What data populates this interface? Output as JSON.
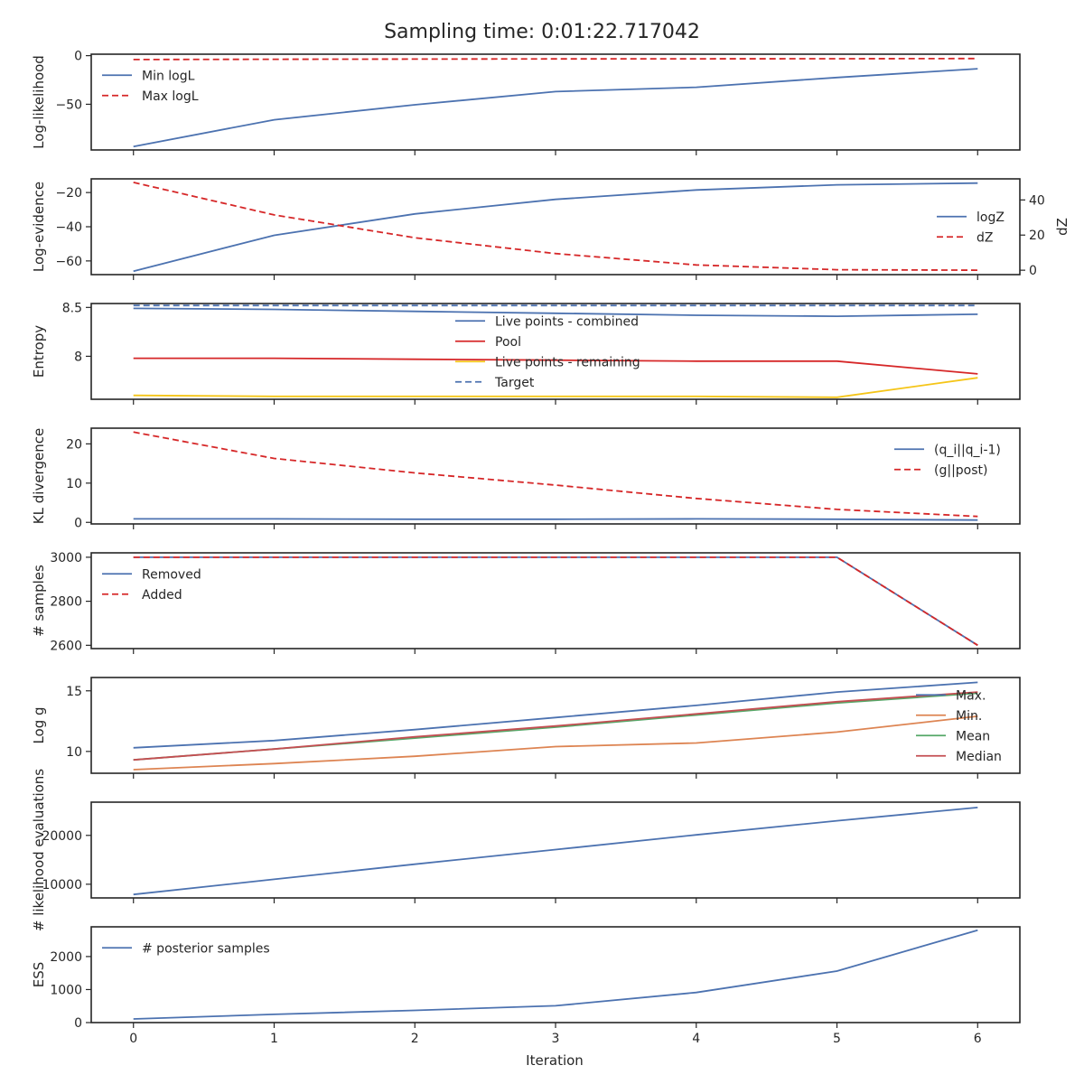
{
  "figure_title": "Sampling time: 0:01:22.717042",
  "colors": {
    "blue": "#4c72b0",
    "red": "#d62728",
    "yellow": "#f5c518",
    "green": "#55a868",
    "orange": "#dd8452",
    "darkred": "#c44e52"
  },
  "chart_data": [
    {
      "type": "line",
      "ylabel": "Log-likelihood",
      "x": [
        0,
        1,
        2,
        3,
        4,
        5,
        6
      ],
      "ylim": [
        -97,
        1.5
      ],
      "yticks": [
        0,
        -50
      ],
      "legend": "upper-left",
      "series": [
        {
          "name": "Min logL",
          "color": "blue",
          "dash": false,
          "values": [
            -93.5,
            -66,
            -50.5,
            -37,
            -32.5,
            -22.5,
            -13.5
          ]
        },
        {
          "name": "Max logL",
          "color": "red",
          "dash": true,
          "values": [
            -4,
            -3.7,
            -3.5,
            -3.3,
            -3.2,
            -3.1,
            -3.0
          ]
        }
      ]
    },
    {
      "type": "line",
      "ylabel": "Log-evidence",
      "y2label": "dZ",
      "x": [
        0,
        1,
        2,
        3,
        4,
        5,
        6
      ],
      "ylim": [
        -68,
        -12
      ],
      "yticks": [
        -20,
        -40,
        -60
      ],
      "y2lim": [
        -2.5,
        52
      ],
      "y2ticks": [
        40,
        20,
        0
      ],
      "legend": "right",
      "series": [
        {
          "name": "logZ",
          "color": "blue",
          "dash": false,
          "axis": "left",
          "values": [
            -66,
            -45,
            -32.5,
            -24,
            -18.5,
            -15.5,
            -14.5
          ]
        },
        {
          "name": "dZ",
          "color": "red",
          "dash": true,
          "axis": "right",
          "values": [
            50,
            31.5,
            18.5,
            9.5,
            3,
            0.3,
            0
          ]
        }
      ]
    },
    {
      "type": "line",
      "ylabel": "Entropy",
      "x": [
        0,
        1,
        2,
        3,
        4,
        5,
        6
      ],
      "ylim": [
        7.56,
        8.54
      ],
      "yticks": [
        8.5,
        8.0
      ],
      "legend": "center",
      "series": [
        {
          "name": "Live points - combined",
          "color": "blue",
          "dash": false,
          "values": [
            8.49,
            8.48,
            8.46,
            8.44,
            8.42,
            8.41,
            8.43
          ]
        },
        {
          "name": "Pool",
          "color": "red",
          "dash": false,
          "values": [
            7.98,
            7.98,
            7.97,
            7.96,
            7.95,
            7.95,
            7.82
          ]
        },
        {
          "name": "Live points - remaining",
          "color": "yellow",
          "dash": false,
          "values": [
            7.6,
            7.59,
            7.59,
            7.59,
            7.59,
            7.58,
            7.78
          ]
        },
        {
          "name": "Target",
          "color": "blue",
          "dash": true,
          "values": [
            8.52,
            8.52,
            8.52,
            8.52,
            8.52,
            8.52,
            8.52
          ]
        }
      ]
    },
    {
      "type": "line",
      "ylabel": "KL divergence",
      "x": [
        0,
        1,
        2,
        3,
        4,
        5,
        6
      ],
      "ylim": [
        -0.4,
        24
      ],
      "yticks": [
        20,
        10,
        0
      ],
      "legend": "upper-right",
      "series": [
        {
          "name": "(q_i||q_i-1)",
          "color": "blue",
          "dash": false,
          "values": [
            0.9,
            0.9,
            0.8,
            0.8,
            0.9,
            0.8,
            0.6
          ]
        },
        {
          "name": "(g||post)",
          "color": "red",
          "dash": true,
          "values": [
            23,
            16.3,
            12.6,
            9.5,
            6.1,
            3.3,
            1.5
          ]
        }
      ]
    },
    {
      "type": "line",
      "ylabel": "# samples",
      "x": [
        0,
        1,
        2,
        3,
        4,
        5,
        6
      ],
      "ylim": [
        2585,
        3020
      ],
      "yticks": [
        3000,
        2800,
        2600
      ],
      "legend": "upper-left",
      "series": [
        {
          "name": "Removed",
          "color": "blue",
          "dash": false,
          "values": [
            3000,
            3000,
            3000,
            3000,
            3000,
            3000,
            2600
          ]
        },
        {
          "name": "Added",
          "color": "red",
          "dash": true,
          "values": [
            3000,
            3000,
            3000,
            3000,
            3000,
            3000,
            2600
          ]
        }
      ]
    },
    {
      "type": "line",
      "ylabel": "Log g",
      "x": [
        0,
        1,
        2,
        3,
        4,
        5,
        6
      ],
      "ylim": [
        8.2,
        16.1
      ],
      "yticks": [
        15,
        10
      ],
      "legend": "lower-right",
      "series": [
        {
          "name": "Max.",
          "color": "blue",
          "dash": false,
          "values": [
            10.3,
            10.9,
            11.8,
            12.8,
            13.8,
            14.9,
            15.7
          ]
        },
        {
          "name": "Min.",
          "color": "orange",
          "dash": false,
          "values": [
            8.5,
            9.0,
            9.6,
            10.4,
            10.7,
            11.6,
            12.9
          ]
        },
        {
          "name": "Mean",
          "color": "green",
          "dash": false,
          "values": [
            9.3,
            10.2,
            11.1,
            12.0,
            13.0,
            14.0,
            14.8
          ]
        },
        {
          "name": "Median",
          "color": "darkred",
          "dash": false,
          "values": [
            9.3,
            10.2,
            11.2,
            12.1,
            13.1,
            14.1,
            14.9
          ]
        }
      ]
    },
    {
      "type": "line",
      "ylabel": "# likelihood evaluations",
      "x": [
        0,
        1,
        2,
        3,
        4,
        5,
        6
      ],
      "ylim": [
        7200,
        26800
      ],
      "yticks": [
        20000,
        10000
      ],
      "legend": null,
      "series": [
        {
          "name": "",
          "color": "blue",
          "dash": false,
          "values": [
            7900,
            11000,
            14100,
            17100,
            20100,
            23000,
            25700
          ]
        }
      ]
    },
    {
      "type": "line",
      "ylabel": "ESS",
      "xlabel": "Iteration",
      "x": [
        0,
        1,
        2,
        3,
        4,
        5,
        6
      ],
      "xticks": [
        "0",
        "1",
        "2",
        "3",
        "4",
        "5",
        "6"
      ],
      "ylim": [
        0,
        2900
      ],
      "yticks": [
        2000,
        1000,
        0
      ],
      "legend": "upper-left",
      "series": [
        {
          "name": "# posterior samples",
          "color": "blue",
          "dash": false,
          "values": [
            110,
            250,
            370,
            510,
            910,
            1560,
            2800
          ]
        }
      ]
    }
  ]
}
